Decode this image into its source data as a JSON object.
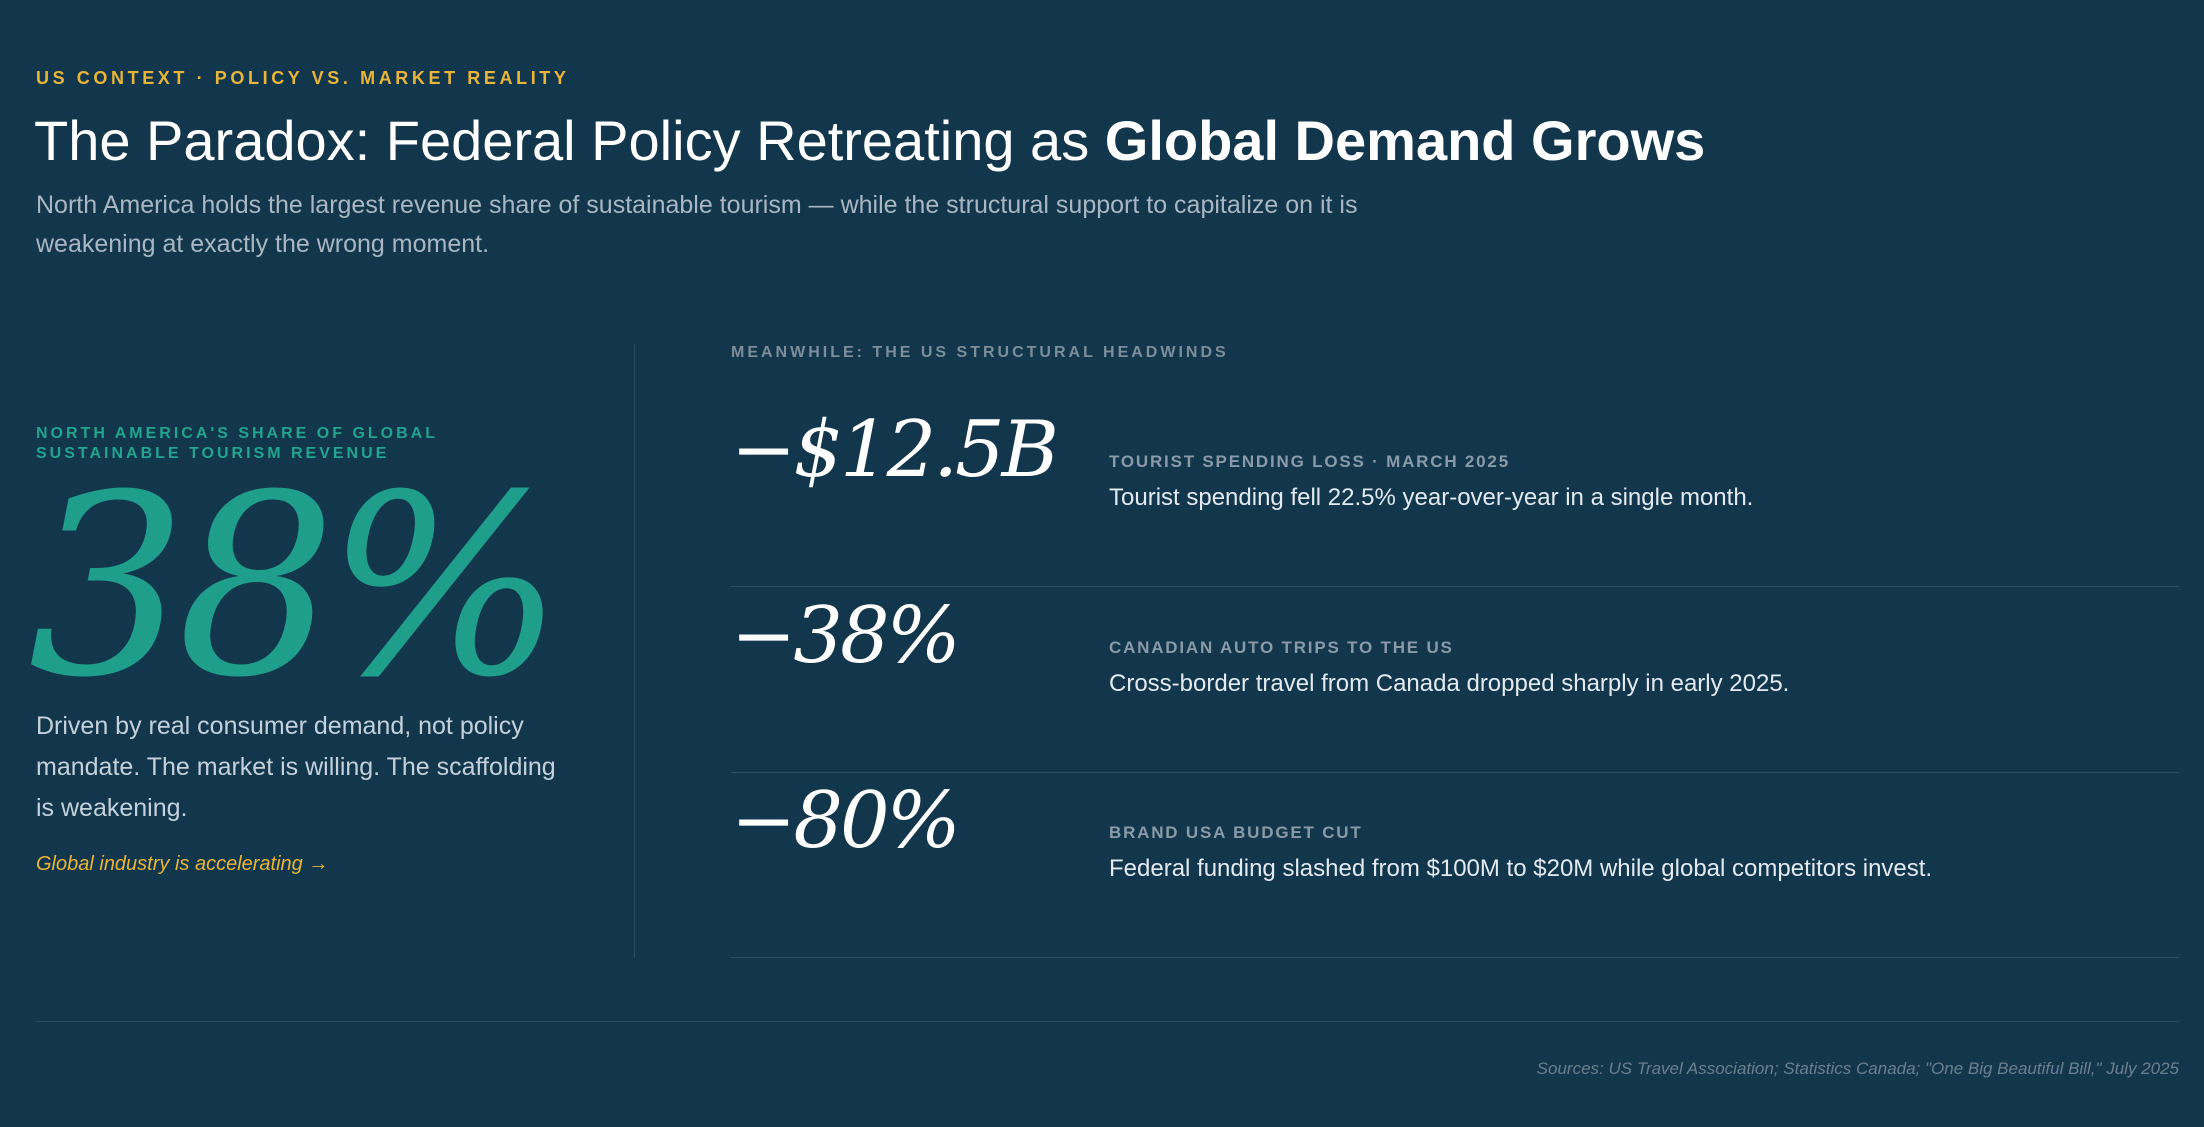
{
  "header": {
    "eyebrow": "US CONTEXT · POLICY VS. MARKET REALITY",
    "title_regular": "The Paradox: Federal Policy Retreating as",
    "title_bold": "Global Demand Grows",
    "subtitle": "North America holds the largest revenue share of sustainable tourism — while the structural support to capitalize on it is weakening at exactly the wrong moment."
  },
  "left": {
    "label": "NORTH AMERICA'S SHARE OF GLOBAL SUSTAINABLE TOURISM REVENUE",
    "stat": "38%",
    "body": "Driven by real consumer demand, not policy mandate. The market is willing. The scaffolding is weakening.",
    "link": "Global industry is accelerating →"
  },
  "right": {
    "label": "MEANWHILE: THE US STRUCTURAL HEADWINDS",
    "items": [
      {
        "value": "−$12.5B",
        "label": "TOURIST SPENDING LOSS · MARCH 2025",
        "desc": "Tourist spending fell 22.5% year-over-year in a single month."
      },
      {
        "value": "−38%",
        "label": "CANADIAN AUTO TRIPS TO THE US",
        "desc": "Cross-border travel from Canada dropped sharply in early 2025."
      },
      {
        "value": "−80%",
        "label": "BRAND USA BUDGET CUT",
        "desc": "Federal funding slashed from $100M to $20M while global competitors invest."
      }
    ]
  },
  "footer": {
    "sources": "Sources: US Travel Association; Statistics Canada; \"One Big Beautiful Bill,\" July 2025"
  },
  "colors": {
    "background": "#12364b",
    "accent_gold": "#e8b53a",
    "accent_teal": "#1e9e8b"
  }
}
